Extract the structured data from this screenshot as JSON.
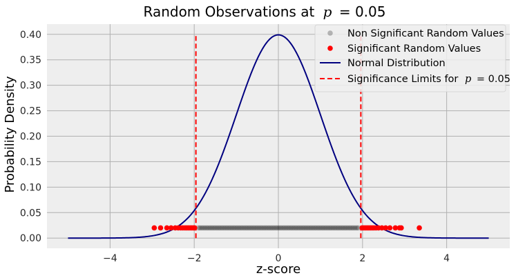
{
  "chart_data": {
    "type": "scatter",
    "title_prefix": "Random Observations at",
    "title_p": "p",
    "title_suffix": "= 0.05",
    "xlabel": "z-score",
    "ylabel": "Probability Density",
    "xlim": [
      -5.5,
      5.5
    ],
    "ylim": [
      -0.02,
      0.42
    ],
    "xticks": [
      -4,
      -2,
      0,
      2,
      4
    ],
    "xtick_labels": [
      "−4",
      "−2",
      "0",
      "2",
      "4"
    ],
    "yticks": [
      0.0,
      0.05,
      0.1,
      0.15,
      0.2,
      0.25,
      0.3,
      0.35,
      0.4
    ],
    "ytick_labels": [
      "0.00",
      "0.05",
      "0.10",
      "0.15",
      "0.20",
      "0.25",
      "0.30",
      "0.35",
      "0.40"
    ],
    "grid": true,
    "legend_position": "top-right",
    "colors": {
      "normal": "#000080",
      "limits": "#ff0000",
      "significant": "#ff0000",
      "non_significant": "#000000",
      "plot_bg": "#eeeeee",
      "grid": "#b0b0b0"
    },
    "normal_distribution": {
      "mean": 0,
      "sd": 1,
      "x_range": [
        -5,
        5
      ]
    },
    "significance_limits": {
      "x": [
        -1.96,
        1.96
      ],
      "y_range": [
        0,
        0.4
      ]
    },
    "dot_y": 0.02,
    "series": [
      {
        "name": "Non Significant Random Values",
        "x": [
          -1.9,
          -1.86,
          -1.82,
          -1.78,
          -1.74,
          -1.7,
          -1.66,
          -1.62,
          -1.58,
          -1.54,
          -1.5,
          -1.46,
          -1.42,
          -1.38,
          -1.34,
          -1.3,
          -1.26,
          -1.22,
          -1.18,
          -1.14,
          -1.1,
          -1.06,
          -1.02,
          -0.98,
          -0.94,
          -0.9,
          -0.86,
          -0.82,
          -0.78,
          -0.74,
          -0.7,
          -0.66,
          -0.62,
          -0.58,
          -0.54,
          -0.5,
          -0.46,
          -0.42,
          -0.38,
          -0.34,
          -0.3,
          -0.26,
          -0.22,
          -0.18,
          -0.14,
          -0.1,
          -0.06,
          -0.02,
          0.02,
          0.06,
          0.1,
          0.14,
          0.18,
          0.22,
          0.26,
          0.3,
          0.34,
          0.38,
          0.42,
          0.46,
          0.5,
          0.54,
          0.58,
          0.62,
          0.66,
          0.7,
          0.74,
          0.78,
          0.82,
          0.86,
          0.9,
          0.94,
          0.98,
          1.02,
          1.06,
          1.1,
          1.14,
          1.18,
          1.22,
          1.26,
          1.3,
          1.34,
          1.38,
          1.42,
          1.46,
          1.5,
          1.54,
          1.58,
          1.62,
          1.66,
          1.7,
          1.74,
          1.78,
          1.82,
          1.86,
          1.9
        ]
      },
      {
        "name": "Significant Random Values",
        "x": [
          -2.95,
          -2.8,
          -2.65,
          -2.55,
          -2.45,
          -2.38,
          -2.32,
          -2.27,
          -2.22,
          -2.18,
          -2.14,
          -2.1,
          -2.06,
          -2.02,
          -1.99,
          1.99,
          2.03,
          2.07,
          2.11,
          2.15,
          2.19,
          2.23,
          2.27,
          2.32,
          2.38,
          2.46,
          2.55,
          2.65,
          2.78,
          2.88,
          2.92,
          3.35
        ]
      },
      {
        "name": "Normal Distribution"
      },
      {
        "name_prefix": "Significance Limits for",
        "name_p": "p",
        "name_suffix": "= 0.05"
      }
    ]
  }
}
